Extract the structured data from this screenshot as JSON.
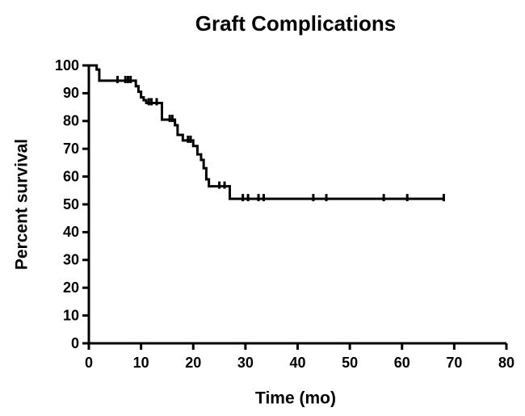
{
  "chart_data": {
    "type": "survival",
    "title": "Graft Complications",
    "xlabel": "Time (mo)",
    "ylabel": "Percent survival",
    "x": [
      0,
      1.5,
      2,
      9,
      9.5,
      10,
      10.5,
      11,
      14,
      16.5,
      17,
      18,
      20,
      20.8,
      21.5,
      22,
      22.5,
      23,
      27,
      68
    ],
    "values": [
      100,
      98.5,
      94.5,
      92.5,
      90.5,
      88.5,
      87.5,
      86.5,
      80.5,
      78.5,
      75,
      73,
      71,
      68,
      66,
      63,
      59,
      56.5,
      52,
      52
    ],
    "censored": {
      "x": [
        5.5,
        7,
        7.5,
        8,
        11.5,
        12,
        13,
        15.5,
        16,
        19,
        19.5,
        25,
        26,
        29.5,
        30.5,
        32.5,
        33.5,
        43,
        45.5,
        56.5,
        61,
        68
      ],
      "values": [
        94.5,
        94.5,
        94.5,
        94.5,
        86.5,
        86.5,
        86.5,
        80.5,
        80.5,
        73,
        73,
        56.5,
        56.5,
        52,
        52,
        52,
        52,
        52,
        52,
        52,
        52,
        52
      ]
    },
    "color": "#000000",
    "xlim": [
      0,
      80
    ],
    "xticks": [
      0,
      10,
      20,
      30,
      40,
      50,
      60,
      70,
      80
    ],
    "ylim": [
      0,
      100
    ],
    "yticks": [
      0,
      10,
      20,
      30,
      40,
      50,
      60,
      70,
      80,
      90,
      100
    ]
  }
}
